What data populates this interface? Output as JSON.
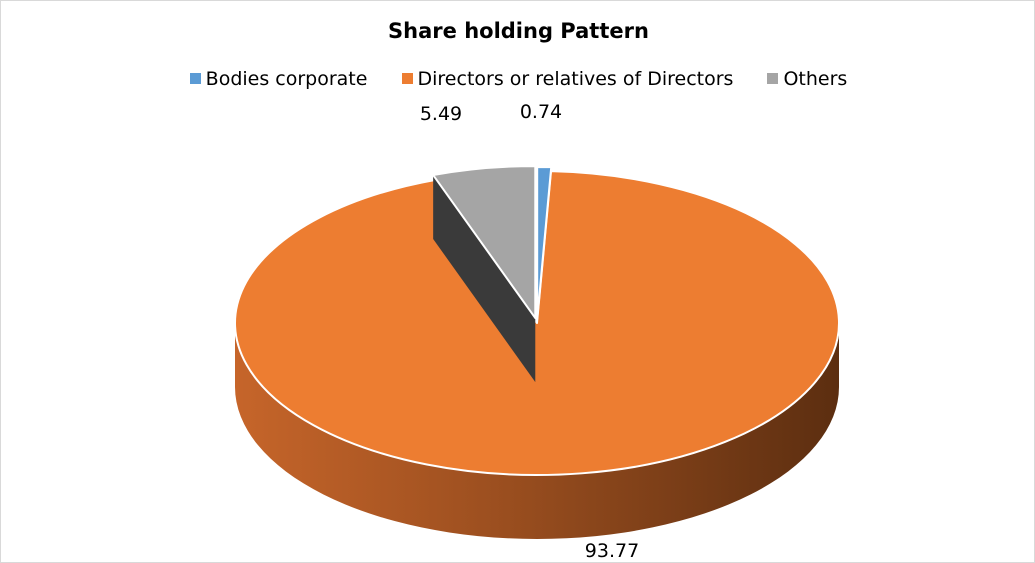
{
  "chart_data": {
    "type": "pie",
    "title": "Share holding Pattern",
    "categories": [
      "Bodies corporate",
      "Directors or relatives of Directors",
      "Others"
    ],
    "values": [
      0.74,
      93.77,
      5.49
    ],
    "data_labels": [
      "0.74",
      "93.77",
      "5.49"
    ],
    "colors": [
      "#5b9bd5",
      "#ed7d31",
      "#a5a5a5"
    ],
    "legend_position": "top",
    "style": "3d-exploded"
  }
}
